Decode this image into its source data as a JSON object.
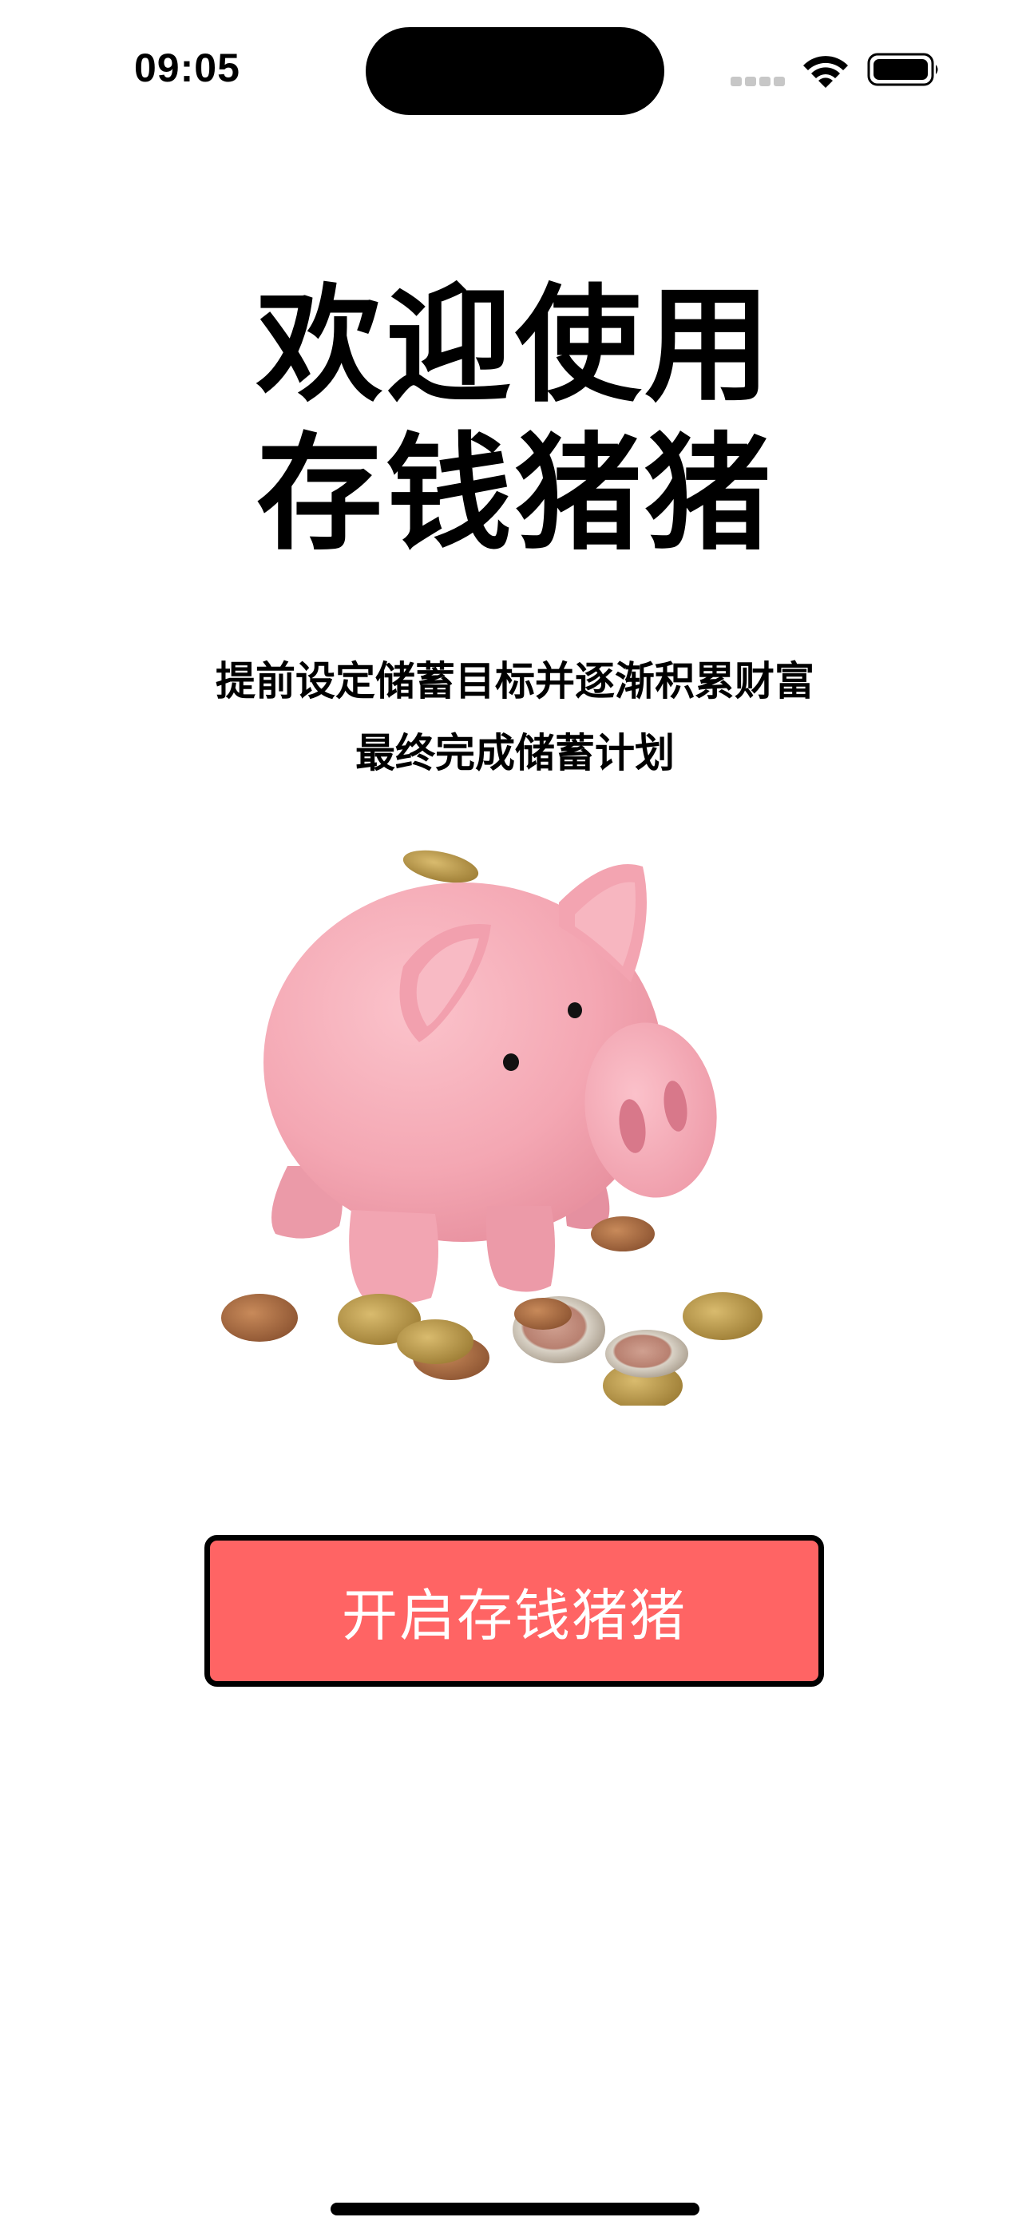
{
  "status_bar": {
    "time": "09:05",
    "signal_icon": "cellular-signal-icon",
    "wifi_icon": "wifi-icon",
    "battery_icon": "battery-icon"
  },
  "welcome": {
    "title_line1": "欢迎使用",
    "title_line2": "存钱猪猪",
    "subtitle_line1": "提前设定储蓄目标并逐渐积累财富",
    "subtitle_line2": "最终完成储蓄计划"
  },
  "illustration": {
    "icon": "piggy-bank-with-coins-illustration"
  },
  "cta": {
    "label": "开启存钱猪猪",
    "background_color": "#ff6464"
  }
}
